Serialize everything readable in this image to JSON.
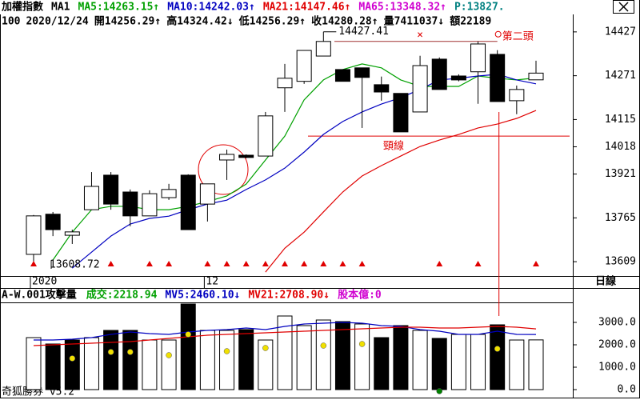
{
  "chart_data": [
    {
      "type": "candlestick",
      "header": [
        {
          "text": "加權指數",
          "color": "#000000"
        },
        {
          "text": "MA1",
          "color": "#000000"
        }
      ],
      "header_extra": [
        {
          "text": "MA65:13348.32↑",
          "color": "#d000d0"
        },
        {
          "text": "P:13827.",
          "color": "#008080"
        }
      ],
      "info": [
        "100",
        "2020/12/24",
        "開14256.29↑",
        "高14324.42↓",
        "低14256.29↑",
        "收14280.28↑",
        "量7411037↓",
        "額22189"
      ],
      "period": "日線",
      "categories": [
        "2020",
        null,
        null,
        null,
        null,
        null,
        null,
        null,
        null,
        "12",
        null,
        null,
        null,
        null,
        null,
        null,
        null,
        null,
        null,
        null,
        null,
        null,
        null,
        null,
        null,
        null,
        null
      ],
      "open": [
        13635,
        13778,
        13703,
        13794,
        13917,
        13857,
        13772,
        13837,
        13917,
        13814,
        13971,
        13988,
        13985,
        14228,
        14251,
        14341,
        14293,
        14299,
        14239,
        14208,
        14142,
        14330,
        14270,
        14285,
        14347,
        14182,
        14256.29
      ],
      "high": [
        13775,
        13786,
        13723,
        13928,
        13928,
        13866,
        13863,
        13886,
        13920,
        13886,
        14008,
        13991,
        14142,
        14313,
        14361,
        14427.41,
        14293,
        14299,
        14268,
        14208,
        14342,
        14336,
        14276,
        14393,
        14362,
        14236,
        14324.42
      ],
      "low": [
        13608.72,
        13700,
        13672,
        13794,
        13794,
        13735,
        13772,
        13829,
        13723,
        13752,
        13900,
        13977,
        13985,
        14142,
        14242,
        14341,
        14251,
        14085,
        14182,
        14071,
        14142,
        14222,
        14251,
        14171,
        14179,
        14134,
        14256.29
      ],
      "close": [
        13772,
        13723,
        13715,
        13877,
        13814,
        13772,
        13851,
        13866,
        13723,
        13886,
        13991,
        13980,
        14128,
        14262,
        14361,
        14393,
        14251,
        14265,
        14213,
        14071,
        14307,
        14222,
        14256,
        14384,
        14179,
        14222,
        14280.28
      ],
      "up_color": "#ffffff",
      "down_color": "#000000",
      "series": [
        {
          "name": "MA5:14263.15↑",
          "color": "#00a000",
          "values": [
            null,
            13615,
            13714,
            13794,
            13806,
            13806,
            13794,
            13794,
            13806,
            13823,
            13843,
            13885,
            13971,
            14056,
            14185,
            14256,
            14293,
            14313,
            14299,
            14256,
            14233,
            14233,
            14233,
            14270,
            14262,
            14256,
            14263.15
          ]
        },
        {
          "name": "MA10:14242.03↑",
          "color": "#0000c0",
          "values": [
            null,
            null,
            13586,
            13643,
            13700,
            13743,
            13763,
            13771,
            13794,
            13814,
            13828,
            13866,
            13900,
            13942,
            13999,
            14062,
            14108,
            14142,
            14170,
            14193,
            14222,
            14256,
            14262,
            14270,
            14276,
            14256,
            14242.03
          ]
        },
        {
          "name": "MA21:14147.46↑",
          "color": "#e00000",
          "values": [
            null,
            null,
            null,
            null,
            null,
            null,
            null,
            null,
            null,
            null,
            null,
            null,
            13572,
            13657,
            13714,
            13786,
            13857,
            13914,
            13951,
            13985,
            14019,
            14042,
            14062,
            14085,
            14099,
            14119,
            14147.46
          ]
        }
      ],
      "ylim": [
        13558,
        14438
      ],
      "yticks": [
        14427,
        14271,
        14115,
        14018,
        13921,
        13765,
        13609
      ],
      "markers": [
        0,
        4,
        6,
        7,
        9,
        10,
        11,
        12,
        13,
        14,
        15,
        16,
        17,
        21,
        23,
        26
      ],
      "marker_color": "#e00000",
      "high_label": "14427.41",
      "low_label": "13608.72",
      "neckline": {
        "value": 14056,
        "label": "頸線"
      },
      "head_line": 14393,
      "head_mark": "×",
      "second_head": "第二頭",
      "annotation_color": "#e00000"
    },
    {
      "type": "bar",
      "header": "A-W.001攻擊量",
      "name": "成交:2218.94",
      "name_color": "#00a000",
      "values": [
        2321,
        2036,
        2214,
        2321,
        2643,
        2643,
        2214,
        2214,
        3821,
        2643,
        2643,
        2679,
        2214,
        3286,
        2857,
        3107,
        3036,
        2929,
        2321,
        2857,
        2643,
        2286,
        2464,
        2464,
        2893,
        2214,
        2218.94
      ],
      "series": [
        {
          "name": "MV5:2460.10↓",
          "color": "#0000c0",
          "values": [
            2214,
            2214,
            2250,
            2321,
            2464,
            2571,
            2500,
            2464,
            2571,
            2643,
            2679,
            2750,
            2679,
            2821,
            2929,
            2964,
            3000,
            2964,
            2857,
            2821,
            2679,
            2607,
            2464,
            2464,
            2607,
            2464,
            2460.1
          ]
        },
        {
          "name": "MV21:2708.90↓",
          "color": "#e00000",
          "values": [
            1964,
            2000,
            2036,
            2071,
            2107,
            2143,
            2214,
            2286,
            2357,
            2429,
            2464,
            2500,
            2536,
            2571,
            2607,
            2643,
            2679,
            2714,
            2750,
            2786,
            2786,
            2750,
            2750,
            2786,
            2821,
            2786,
            2708.9
          ]
        }
      ],
      "header_extra": {
        "text": "股本億:0",
        "color": "#d000d0"
      },
      "dots": [
        {
          "color": "#f0e000",
          "values": [
            null,
            null,
            1393,
            null,
            1679,
            1679,
            null,
            1536,
            2464,
            null,
            1714,
            null,
            1857,
            null,
            null,
            1964,
            null,
            2036,
            null,
            null,
            null,
            null,
            null,
            null,
            1821,
            null,
            null
          ]
        },
        {
          "color": "#008000",
          "values": [
            null,
            null,
            null,
            null,
            null,
            null,
            null,
            null,
            null,
            null,
            null,
            null,
            null,
            null,
            null,
            null,
            null,
            null,
            null,
            null,
            null,
            -70,
            null,
            null,
            null,
            null,
            null
          ]
        }
      ],
      "ylim": [
        -357,
        3893
      ],
      "yticks": [
        {
          "value": 3000,
          "label": "3000.0"
        },
        {
          "value": 2000,
          "label": "2000.0"
        },
        {
          "value": 1000,
          "label": "1000.0"
        },
        {
          "value": 0,
          "label": "0.0"
        }
      ]
    }
  ],
  "footer": "奇狐勝券 v5.2"
}
